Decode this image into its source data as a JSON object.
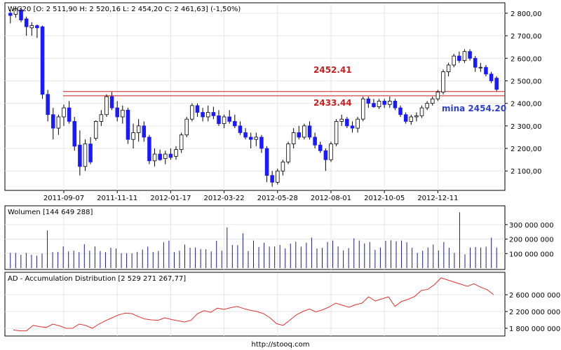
{
  "chart_data": [
    {
      "type": "candlestick",
      "header": "WIG20 [O: 2 511,90  H: 2 520,16  L: 2 454,20  C: 2 461,63] (-1,50%)",
      "x_labels": [
        "2011-09-07",
        "2011-11-11",
        "2012-01-17",
        "2012-03-22",
        "2012-05-28",
        "2012-08-01",
        "2012-10-05",
        "2012-12-11"
      ],
      "x_label_weeks": [
        10,
        20,
        30,
        40,
        50,
        60,
        70,
        80
      ],
      "ylim": [
        2020,
        2840
      ],
      "y_ticks": [
        2100,
        2200,
        2300,
        2400,
        2500,
        2600,
        2700,
        2800
      ],
      "y_tick_labels": [
        "2 100,00",
        "2 200,00",
        "2 300,00",
        "2 400,00",
        "2 500,00",
        "2 600,00",
        "2 700,00",
        "2 800,00"
      ],
      "candles": [
        {
          "o": 2800,
          "h": 2815,
          "l": 2755,
          "c": 2790
        },
        {
          "o": 2795,
          "h": 2830,
          "l": 2780,
          "c": 2820
        },
        {
          "o": 2815,
          "h": 2825,
          "l": 2760,
          "c": 2770
        },
        {
          "o": 2775,
          "h": 2785,
          "l": 2700,
          "c": 2740
        },
        {
          "o": 2735,
          "h": 2760,
          "l": 2700,
          "c": 2745
        },
        {
          "o": 2745,
          "h": 2750,
          "l": 2690,
          "c": 2735
        },
        {
          "o": 2740,
          "h": 2745,
          "l": 2420,
          "c": 2440
        },
        {
          "o": 2440,
          "h": 2460,
          "l": 2320,
          "c": 2350
        },
        {
          "o": 2350,
          "h": 2380,
          "l": 2240,
          "c": 2290
        },
        {
          "o": 2290,
          "h": 2350,
          "l": 2260,
          "c": 2340
        },
        {
          "o": 2340,
          "h": 2395,
          "l": 2300,
          "c": 2380
        },
        {
          "o": 2380,
          "h": 2410,
          "l": 2310,
          "c": 2320
        },
        {
          "o": 2320,
          "h": 2340,
          "l": 2190,
          "c": 2210
        },
        {
          "o": 2215,
          "h": 2280,
          "l": 2080,
          "c": 2120
        },
        {
          "o": 2120,
          "h": 2240,
          "l": 2100,
          "c": 2220
        },
        {
          "o": 2220,
          "h": 2250,
          "l": 2130,
          "c": 2140
        },
        {
          "o": 2245,
          "h": 2325,
          "l": 2235,
          "c": 2320
        },
        {
          "o": 2320,
          "h": 2370,
          "l": 2300,
          "c": 2350
        },
        {
          "o": 2350,
          "h": 2440,
          "l": 2340,
          "c": 2430
        },
        {
          "o": 2430,
          "h": 2450,
          "l": 2370,
          "c": 2380
        },
        {
          "o": 2380,
          "h": 2410,
          "l": 2320,
          "c": 2340
        },
        {
          "o": 2340,
          "h": 2390,
          "l": 2310,
          "c": 2370
        },
        {
          "o": 2370,
          "h": 2380,
          "l": 2220,
          "c": 2240
        },
        {
          "o": 2240,
          "h": 2310,
          "l": 2200,
          "c": 2270
        },
        {
          "o": 2270,
          "h": 2330,
          "l": 2230,
          "c": 2300
        },
        {
          "o": 2300,
          "h": 2320,
          "l": 2230,
          "c": 2250
        },
        {
          "o": 2250,
          "h": 2260,
          "l": 2130,
          "c": 2145
        },
        {
          "o": 2145,
          "h": 2200,
          "l": 2120,
          "c": 2175
        },
        {
          "o": 2175,
          "h": 2195,
          "l": 2145,
          "c": 2150
        },
        {
          "o": 2155,
          "h": 2190,
          "l": 2130,
          "c": 2175
        },
        {
          "o": 2175,
          "h": 2200,
          "l": 2150,
          "c": 2160
        },
        {
          "o": 2165,
          "h": 2210,
          "l": 2150,
          "c": 2195
        },
        {
          "o": 2195,
          "h": 2270,
          "l": 2180,
          "c": 2260
        },
        {
          "o": 2260,
          "h": 2340,
          "l": 2250,
          "c": 2330
        },
        {
          "o": 2330,
          "h": 2400,
          "l": 2320,
          "c": 2390
        },
        {
          "o": 2390,
          "h": 2400,
          "l": 2340,
          "c": 2360
        },
        {
          "o": 2360,
          "h": 2380,
          "l": 2320,
          "c": 2340
        },
        {
          "o": 2340,
          "h": 2390,
          "l": 2320,
          "c": 2360
        },
        {
          "o": 2360,
          "h": 2385,
          "l": 2330,
          "c": 2345
        },
        {
          "o": 2345,
          "h": 2370,
          "l": 2300,
          "c": 2310
        },
        {
          "o": 2310,
          "h": 2350,
          "l": 2290,
          "c": 2340
        },
        {
          "o": 2340,
          "h": 2370,
          "l": 2310,
          "c": 2320
        },
        {
          "o": 2320,
          "h": 2350,
          "l": 2290,
          "c": 2300
        },
        {
          "o": 2300,
          "h": 2320,
          "l": 2260,
          "c": 2270
        },
        {
          "o": 2270,
          "h": 2290,
          "l": 2240,
          "c": 2250
        },
        {
          "o": 2250,
          "h": 2270,
          "l": 2200,
          "c": 2240
        },
        {
          "o": 2240,
          "h": 2270,
          "l": 2210,
          "c": 2250
        },
        {
          "o": 2250,
          "h": 2260,
          "l": 2180,
          "c": 2200
        },
        {
          "o": 2200,
          "h": 2210,
          "l": 2050,
          "c": 2080
        },
        {
          "o": 2080,
          "h": 2100,
          "l": 2030,
          "c": 2050
        },
        {
          "o": 2050,
          "h": 2110,
          "l": 2040,
          "c": 2100
        },
        {
          "o": 2100,
          "h": 2150,
          "l": 2080,
          "c": 2140
        },
        {
          "o": 2140,
          "h": 2230,
          "l": 2130,
          "c": 2220
        },
        {
          "o": 2220,
          "h": 2290,
          "l": 2200,
          "c": 2270
        },
        {
          "o": 2270,
          "h": 2300,
          "l": 2240,
          "c": 2250
        },
        {
          "o": 2250,
          "h": 2310,
          "l": 2240,
          "c": 2300
        },
        {
          "o": 2300,
          "h": 2320,
          "l": 2240,
          "c": 2250
        },
        {
          "o": 2250,
          "h": 2270,
          "l": 2200,
          "c": 2215
        },
        {
          "o": 2215,
          "h": 2230,
          "l": 2180,
          "c": 2190
        },
        {
          "o": 2190,
          "h": 2200,
          "l": 2100,
          "c": 2150
        },
        {
          "o": 2150,
          "h": 2230,
          "l": 2140,
          "c": 2220
        },
        {
          "o": 2220,
          "h": 2330,
          "l": 2210,
          "c": 2320
        },
        {
          "o": 2320,
          "h": 2350,
          "l": 2300,
          "c": 2330
        },
        {
          "o": 2330,
          "h": 2340,
          "l": 2290,
          "c": 2300
        },
        {
          "o": 2300,
          "h": 2320,
          "l": 2270,
          "c": 2290
        },
        {
          "o": 2290,
          "h": 2340,
          "l": 2270,
          "c": 2330
        },
        {
          "o": 2330,
          "h": 2430,
          "l": 2320,
          "c": 2420
        },
        {
          "o": 2420,
          "h": 2430,
          "l": 2380,
          "c": 2400
        },
        {
          "o": 2400,
          "h": 2420,
          "l": 2380,
          "c": 2385
        },
        {
          "o": 2385,
          "h": 2420,
          "l": 2375,
          "c": 2410
        },
        {
          "o": 2410,
          "h": 2420,
          "l": 2380,
          "c": 2395
        },
        {
          "o": 2395,
          "h": 2430,
          "l": 2380,
          "c": 2410
        },
        {
          "o": 2410,
          "h": 2420,
          "l": 2370,
          "c": 2380
        },
        {
          "o": 2380,
          "h": 2390,
          "l": 2340,
          "c": 2350
        },
        {
          "o": 2350,
          "h": 2360,
          "l": 2310,
          "c": 2320
        },
        {
          "o": 2320,
          "h": 2350,
          "l": 2305,
          "c": 2340
        },
        {
          "o": 2340,
          "h": 2360,
          "l": 2320,
          "c": 2345
        },
        {
          "o": 2345,
          "h": 2390,
          "l": 2335,
          "c": 2380
        },
        {
          "o": 2380,
          "h": 2410,
          "l": 2370,
          "c": 2400
        },
        {
          "o": 2400,
          "h": 2430,
          "l": 2390,
          "c": 2420
        },
        {
          "o": 2420,
          "h": 2460,
          "l": 2410,
          "c": 2450
        },
        {
          "o": 2450,
          "h": 2550,
          "l": 2440,
          "c": 2540
        },
        {
          "o": 2540,
          "h": 2580,
          "l": 2520,
          "c": 2570
        },
        {
          "o": 2570,
          "h": 2620,
          "l": 2560,
          "c": 2610
        },
        {
          "o": 2610,
          "h": 2630,
          "l": 2580,
          "c": 2590
        },
        {
          "o": 2590,
          "h": 2640,
          "l": 2580,
          "c": 2630
        },
        {
          "o": 2630,
          "h": 2640,
          "l": 2590,
          "c": 2600
        },
        {
          "o": 2600,
          "h": 2610,
          "l": 2540,
          "c": 2560
        },
        {
          "o": 2560,
          "h": 2580,
          "l": 2540,
          "c": 2560
        },
        {
          "o": 2560,
          "h": 2570,
          "l": 2520,
          "c": 2530
        },
        {
          "o": 2530,
          "h": 2540,
          "l": 2490,
          "c": 2500
        },
        {
          "o": 2512,
          "h": 2520,
          "l": 2454,
          "c": 2462
        }
      ],
      "hlines": [
        {
          "value": 2452.41,
          "label": "2452.41",
          "color": "#c81e1e"
        },
        {
          "value": 2433.44,
          "label": "2433.44",
          "color": "#c81e1e"
        }
      ],
      "annotation": {
        "text": "mina 2454.20",
        "color": "#2b3fd0"
      },
      "up_color": "#ffffff",
      "down_color": "#1a1aff"
    },
    {
      "type": "bar",
      "title": "Wolumen [144 649 288]",
      "ylim": [
        0,
        420000000
      ],
      "y_ticks": [
        100000000,
        200000000,
        300000000
      ],
      "y_tick_labels": [
        "100 000 000",
        "200 000 000",
        "300 000 000"
      ],
      "values": [
        105000000,
        105000000,
        92000000,
        105000000,
        92000000,
        85000000,
        100000000,
        260000000,
        110000000,
        112000000,
        150000000,
        115000000,
        120000000,
        110000000,
        165000000,
        120000000,
        150000000,
        118000000,
        110000000,
        140000000,
        135000000,
        102000000,
        102000000,
        102000000,
        112000000,
        128000000,
        148000000,
        112000000,
        118000000,
        178000000,
        190000000,
        110000000,
        120000000,
        162000000,
        140000000,
        142000000,
        132000000,
        130000000,
        115000000,
        188000000,
        120000000,
        280000000,
        160000000,
        158000000,
        240000000,
        118000000,
        190000000,
        145000000,
        175000000,
        148000000,
        150000000,
        160000000,
        135000000,
        168000000,
        182000000,
        148000000,
        175000000,
        210000000,
        135000000,
        140000000,
        180000000,
        190000000,
        150000000,
        122000000,
        138000000,
        205000000,
        190000000,
        170000000,
        180000000,
        125000000,
        142000000,
        188000000,
        192000000,
        185000000,
        190000000,
        178000000,
        140000000,
        105000000,
        120000000,
        142000000,
        162000000,
        122000000,
        180000000,
        140000000,
        105000000,
        385000000,
        95000000,
        142000000,
        145000000,
        142000000,
        148000000,
        210000000,
        142000000
      ],
      "color": "#1a1aa0"
    },
    {
      "type": "line",
      "title": "AD - Accumulation Distribution [2 529 271 267,77]",
      "ylim": [
        1650000000,
        3100000000
      ],
      "y_ticks": [
        1800000000,
        2200000000,
        2600000000
      ],
      "y_tick_labels": [
        "1 800 000 000",
        "2 200 000 000",
        "2 600 000 000"
      ],
      "values": [
        1760000000,
        1740000000,
        1740000000,
        1870000000,
        1840000000,
        1820000000,
        1900000000,
        1860000000,
        1800000000,
        1800000000,
        1900000000,
        1870000000,
        1800000000,
        1900000000,
        1980000000,
        2050000000,
        2120000000,
        2160000000,
        2150000000,
        2080000000,
        2020000000,
        2000000000,
        1990000000,
        2050000000,
        2010000000,
        1980000000,
        1950000000,
        1990000000,
        2150000000,
        2220000000,
        2180000000,
        2280000000,
        2250000000,
        2290000000,
        2320000000,
        2270000000,
        2230000000,
        2200000000,
        2150000000,
        2050000000,
        1910000000,
        1870000000,
        1990000000,
        2120000000,
        2200000000,
        2260000000,
        2190000000,
        2240000000,
        2310000000,
        2400000000,
        2350000000,
        2300000000,
        2360000000,
        2400000000,
        2550000000,
        2450000000,
        2500000000,
        2550000000,
        2320000000,
        2440000000,
        2490000000,
        2560000000,
        2700000000,
        2730000000,
        2840000000,
        3000000000,
        2950000000,
        2900000000,
        2850000000,
        2800000000,
        2860000000,
        2780000000,
        2720000000,
        2600000000
      ],
      "color": "#e03030"
    }
  ],
  "footer": "http://stooq.com"
}
